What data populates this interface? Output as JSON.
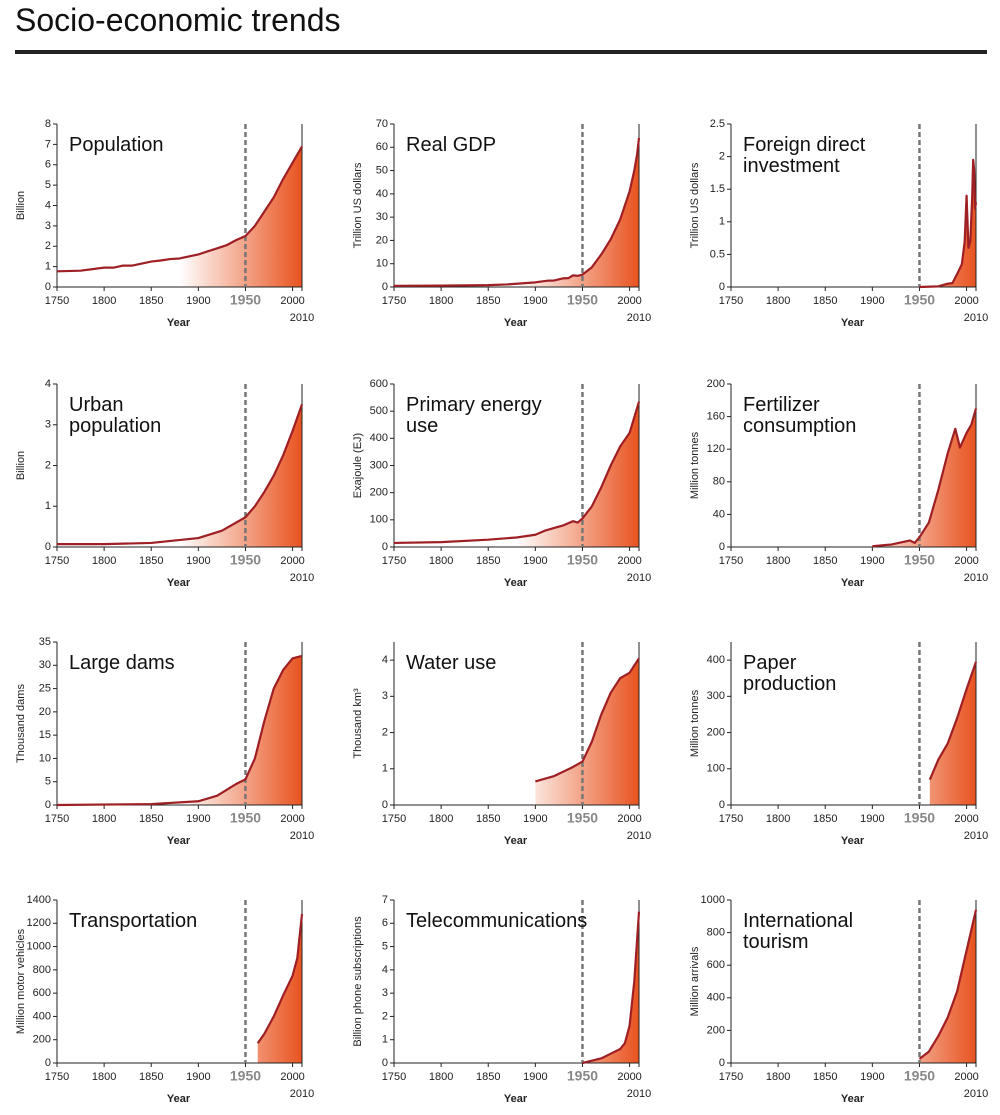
{
  "title": "Socio-economic trends",
  "chart_data": [
    {
      "type": "area",
      "title": "Population",
      "y_label": "Billion",
      "x_label": "Year",
      "color": "#9e1f24",
      "fill_color": "#e8531f",
      "xlim": [
        1750,
        2010
      ],
      "xticks": [
        1750,
        1800,
        1850,
        1900,
        1950,
        2000,
        2010
      ],
      "ylim": [
        0,
        8
      ],
      "yticks": [
        0,
        1,
        2,
        3,
        4,
        5,
        6,
        7,
        8
      ],
      "reference_line": {
        "x": 1950,
        "style": "dashed"
      },
      "x": [
        1750,
        1775,
        1800,
        1810,
        1820,
        1830,
        1850,
        1860,
        1870,
        1880,
        1900,
        1910,
        1920,
        1930,
        1940,
        1950,
        1960,
        1970,
        1980,
        1990,
        2000,
        2010
      ],
      "values": [
        0.77,
        0.8,
        0.95,
        0.95,
        1.05,
        1.05,
        1.25,
        1.3,
        1.37,
        1.4,
        1.6,
        1.75,
        1.9,
        2.05,
        2.3,
        2.5,
        3.0,
        3.7,
        4.4,
        5.3,
        6.1,
        6.9
      ]
    },
    {
      "type": "area",
      "title": "Real GDP",
      "y_label": "Trillion US dollars",
      "x_label": "Year",
      "color": "#9e1f24",
      "fill_color": "#e8531f",
      "xlim": [
        1750,
        2010
      ],
      "xticks": [
        1750,
        1800,
        1850,
        1900,
        1950,
        2000,
        2010
      ],
      "ylim": [
        0,
        70
      ],
      "yticks": [
        0,
        10,
        20,
        30,
        40,
        50,
        60,
        70
      ],
      "reference_line": {
        "x": 1950,
        "style": "dashed"
      },
      "x": [
        1750,
        1800,
        1850,
        1870,
        1900,
        1913,
        1920,
        1929,
        1935,
        1940,
        1945,
        1950,
        1960,
        1970,
        1980,
        1990,
        2000,
        2005,
        2008,
        2010
      ],
      "values": [
        0.5,
        0.6,
        0.8,
        1.1,
        2,
        2.7,
        2.8,
        3.7,
        3.8,
        5,
        4.8,
        5.3,
        8.5,
        14,
        20.5,
        29,
        41,
        50,
        57,
        64
      ]
    },
    {
      "type": "area",
      "title": "Foreign direct investment",
      "y_label": "Trillion US dollars",
      "x_label": "Year",
      "color": "#9e1f24",
      "fill_color": "#e8531f",
      "xlim": [
        1750,
        2010
      ],
      "xticks": [
        1750,
        1800,
        1850,
        1900,
        1950,
        2000,
        2010
      ],
      "ylim": [
        0,
        2.5
      ],
      "yticks": [
        0,
        0.5,
        1,
        1.5,
        2,
        2.5
      ],
      "reference_line": {
        "x": 1950,
        "style": "dashed"
      },
      "x": [
        1950,
        1970,
        1980,
        1985,
        1990,
        1995,
        1998,
        2000,
        2002,
        2004,
        2006,
        2007,
        2008,
        2009,
        2010
      ],
      "values": [
        0,
        0.01,
        0.05,
        0.06,
        0.2,
        0.35,
        0.7,
        1.4,
        0.6,
        0.7,
        1.4,
        1.95,
        1.8,
        1.2,
        1.3
      ]
    },
    {
      "type": "area",
      "title": "Urban population",
      "y_label": "Billion",
      "x_label": "Year",
      "color": "#9e1f24",
      "fill_color": "#e8531f",
      "xlim": [
        1750,
        2010
      ],
      "xticks": [
        1750,
        1800,
        1850,
        1900,
        1950,
        2000,
        2010
      ],
      "ylim": [
        0,
        4
      ],
      "yticks": [
        0,
        1,
        2,
        3,
        4
      ],
      "reference_line": {
        "x": 1950,
        "style": "dashed"
      },
      "x": [
        1750,
        1800,
        1850,
        1900,
        1925,
        1950,
        1960,
        1970,
        1980,
        1990,
        2000,
        2010
      ],
      "values": [
        0.07,
        0.07,
        0.1,
        0.22,
        0.4,
        0.73,
        1.0,
        1.35,
        1.75,
        2.25,
        2.85,
        3.5
      ]
    },
    {
      "type": "area",
      "title": "Primary energy use",
      "y_label": "Exajoule (EJ)",
      "x_label": "Year",
      "color": "#9e1f24",
      "fill_color": "#e8531f",
      "xlim": [
        1750,
        2010
      ],
      "xticks": [
        1750,
        1800,
        1850,
        1900,
        1950,
        2000,
        2010
      ],
      "ylim": [
        0,
        600
      ],
      "yticks": [
        0,
        100,
        200,
        300,
        400,
        500,
        600
      ],
      "reference_line": {
        "x": 1950,
        "style": "dashed"
      },
      "x": [
        1750,
        1800,
        1850,
        1880,
        1900,
        1910,
        1920,
        1930,
        1940,
        1945,
        1950,
        1960,
        1970,
        1980,
        1990,
        2000,
        2010
      ],
      "values": [
        15,
        18,
        27,
        35,
        45,
        60,
        70,
        80,
        95,
        90,
        105,
        150,
        220,
        300,
        370,
        420,
        535
      ]
    },
    {
      "type": "area",
      "title": "Fertilizer consumption",
      "y_label": "Million tonnes",
      "x_label": "Year",
      "color": "#9e1f24",
      "fill_color": "#e8531f",
      "xlim": [
        1750,
        2010
      ],
      "xticks": [
        1750,
        1800,
        1850,
        1900,
        1950,
        2000,
        2010
      ],
      "ylim": [
        0,
        200
      ],
      "yticks": [
        0,
        40,
        80,
        120,
        160,
        200
      ],
      "reference_line": {
        "x": 1950,
        "style": "dashed"
      },
      "x": [
        1900,
        1920,
        1940,
        1945,
        1950,
        1960,
        1970,
        1980,
        1988,
        1993,
        2000,
        2005,
        2010
      ],
      "values": [
        1,
        3,
        8,
        5,
        12,
        30,
        70,
        115,
        145,
        122,
        140,
        150,
        170
      ]
    },
    {
      "type": "area",
      "title": "Large dams",
      "y_label": "Thousand dams",
      "x_label": "Year",
      "color": "#9e1f24",
      "fill_color": "#e8531f",
      "xlim": [
        1750,
        2010
      ],
      "xticks": [
        1750,
        1800,
        1850,
        1900,
        1950,
        2000,
        2010
      ],
      "ylim": [
        0,
        35
      ],
      "yticks": [
        0,
        5,
        10,
        15,
        20,
        25,
        30,
        35
      ],
      "reference_line": {
        "x": 1950,
        "style": "dashed"
      },
      "x": [
        1750,
        1850,
        1900,
        1920,
        1940,
        1950,
        1960,
        1970,
        1980,
        1990,
        2000,
        2010
      ],
      "values": [
        0,
        0.2,
        0.8,
        2,
        4.5,
        5.5,
        10,
        18,
        25,
        29,
        31.5,
        32
      ]
    },
    {
      "type": "area",
      "title": "Water use",
      "y_label": "Thousand km³",
      "x_label": "Year",
      "color": "#9e1f24",
      "fill_color": "#e8531f",
      "xlim": [
        1750,
        2010
      ],
      "xticks": [
        1750,
        1800,
        1850,
        1900,
        1950,
        2000,
        2010
      ],
      "ylim": [
        0,
        4.5
      ],
      "yticks": [
        0,
        1,
        2,
        3,
        4
      ],
      "reference_line": {
        "x": 1950,
        "style": "dashed"
      },
      "x": [
        1900,
        1920,
        1940,
        1950,
        1960,
        1970,
        1980,
        1990,
        2000,
        2010
      ],
      "values": [
        0.65,
        0.8,
        1.05,
        1.2,
        1.75,
        2.5,
        3.1,
        3.5,
        3.65,
        4.05
      ]
    },
    {
      "type": "area",
      "title": "Paper production",
      "y_label": "Million tonnes",
      "x_label": "Year",
      "color": "#9e1f24",
      "fill_color": "#e8531f",
      "xlim": [
        1750,
        2010
      ],
      "xticks": [
        1750,
        1800,
        1850,
        1900,
        1950,
        2000,
        2010
      ],
      "ylim": [
        0,
        450
      ],
      "yticks": [
        0,
        100,
        200,
        300,
        400
      ],
      "reference_line": {
        "x": 1950,
        "style": "dashed"
      },
      "x": [
        1961,
        1970,
        1980,
        1990,
        2000,
        2010
      ],
      "values": [
        70,
        125,
        170,
        240,
        320,
        395
      ]
    },
    {
      "type": "area",
      "title": "Transportation",
      "y_label": "Million motor vehicles",
      "x_label": "Year",
      "color": "#9e1f24",
      "fill_color": "#e8531f",
      "xlim": [
        1750,
        2010
      ],
      "xticks": [
        1750,
        1800,
        1850,
        1900,
        1950,
        2000,
        2010
      ],
      "ylim": [
        0,
        1400
      ],
      "yticks": [
        0,
        200,
        400,
        600,
        800,
        1000,
        1200,
        1400
      ],
      "reference_line": {
        "x": 1950,
        "style": "dashed"
      },
      "x": [
        1963,
        1970,
        1980,
        1990,
        2000,
        2005,
        2010
      ],
      "values": [
        170,
        250,
        400,
        580,
        750,
        900,
        1280
      ]
    },
    {
      "type": "area",
      "title": "Telecommunications",
      "y_label": "Billion phone subscriptions",
      "x_label": "Year",
      "color": "#9e1f24",
      "fill_color": "#e8531f",
      "xlim": [
        1750,
        2010
      ],
      "xticks": [
        1750,
        1800,
        1850,
        1900,
        1950,
        2000,
        2010
      ],
      "ylim": [
        0,
        7
      ],
      "yticks": [
        0,
        1,
        2,
        3,
        4,
        5,
        6,
        7
      ],
      "reference_line": {
        "x": 1950,
        "style": "dashed"
      },
      "x": [
        1950,
        1960,
        1970,
        1980,
        1990,
        1995,
        2000,
        2005,
        2010
      ],
      "values": [
        0,
        0.1,
        0.2,
        0.4,
        0.6,
        0.85,
        1.6,
        3.5,
        6.5
      ]
    },
    {
      "type": "area",
      "title": "International tourism",
      "y_label": "Million arrivals",
      "x_label": "Year",
      "color": "#9e1f24",
      "fill_color": "#e8531f",
      "xlim": [
        1750,
        2010
      ],
      "xticks": [
        1750,
        1800,
        1850,
        1900,
        1950,
        2000,
        2010
      ],
      "ylim": [
        0,
        1000
      ],
      "yticks": [
        0,
        200,
        400,
        600,
        800,
        1000
      ],
      "reference_line": {
        "x": 1950,
        "style": "dashed"
      },
      "x": [
        1950,
        1960,
        1970,
        1980,
        1990,
        2000,
        2010
      ],
      "values": [
        25,
        70,
        165,
        280,
        440,
        690,
        940
      ]
    }
  ]
}
